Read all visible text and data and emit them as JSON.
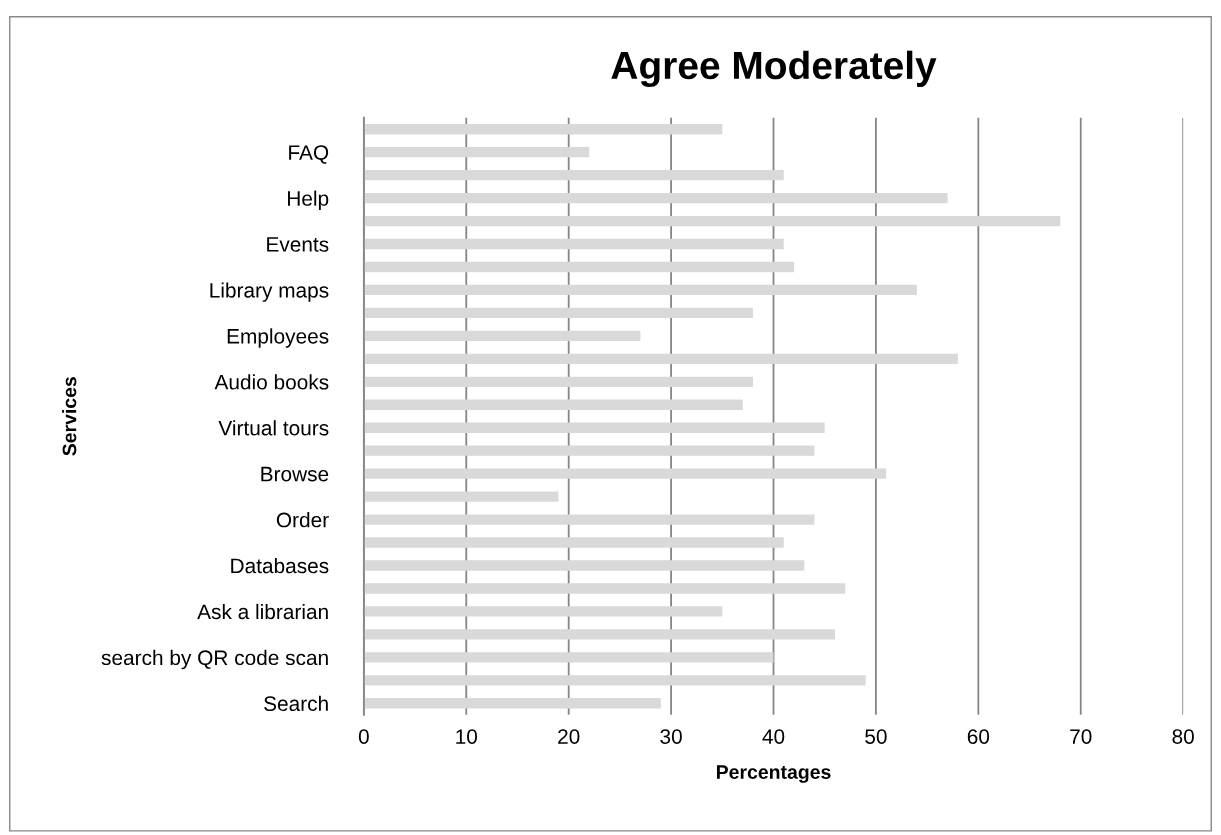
{
  "chart_data": {
    "type": "bar",
    "orientation": "horizontal",
    "title": "Agree Moderately",
    "xlabel": "Percentages",
    "ylabel": "Services",
    "categories": [
      null,
      "FAQ",
      null,
      "Help",
      null,
      "Events",
      null,
      "Library maps",
      null,
      "Employees",
      null,
      "Audio books",
      null,
      "Virtual tours",
      null,
      "Browse",
      null,
      "Order",
      null,
      "Databases",
      null,
      "Ask a librarian",
      null,
      "search by QR code scan",
      null,
      "Search"
    ],
    "values": [
      35,
      22,
      41,
      57,
      68,
      41,
      42,
      54,
      38,
      27,
      58,
      38,
      37,
      45,
      44,
      51,
      19,
      44,
      41,
      43,
      47,
      35,
      46,
      40,
      49,
      29
    ],
    "color": "#d9d9d9",
    "xlim": [
      0,
      80
    ],
    "xticks": [
      0,
      10,
      20,
      30,
      40,
      50,
      60,
      70,
      80
    ],
    "grid": "x",
    "legend": false
  }
}
